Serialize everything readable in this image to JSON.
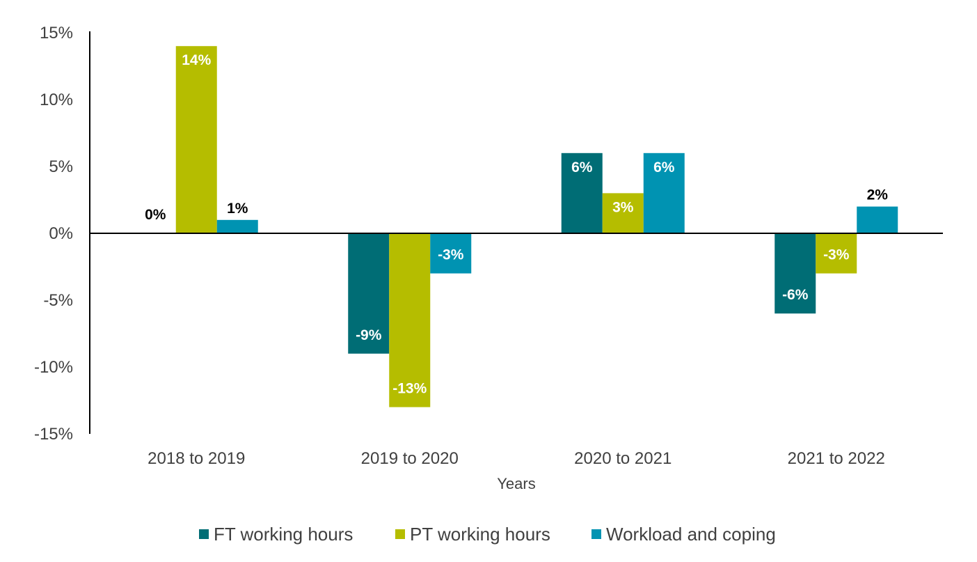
{
  "chart_data": {
    "type": "bar",
    "title": "",
    "xlabel": "Years",
    "ylabel": "",
    "ylim": [
      -15,
      15
    ],
    "yticks": [
      15,
      10,
      5,
      0,
      -5,
      -10,
      -15
    ],
    "ytick_labels": [
      "15%",
      "10%",
      "5%",
      "0%",
      "-5%",
      "-10%",
      "-15%"
    ],
    "categories": [
      "2018 to 2019",
      "2019 to 2020",
      "2020 to 2021",
      "2021 to 2022"
    ],
    "series": [
      {
        "name": "FT working hours",
        "color": "#006D75",
        "values": [
          0,
          -9,
          6,
          -6
        ],
        "labels": [
          "0%",
          "-9%",
          "6%",
          "-6%"
        ]
      },
      {
        "name": "PT working hours",
        "color": "#B5BD00",
        "values": [
          14,
          -13,
          3,
          -3
        ],
        "labels": [
          "14%",
          "-13%",
          "3%",
          "-3%"
        ]
      },
      {
        "name": "Workload and coping",
        "color": "#0093B2",
        "values": [
          1,
          -3,
          6,
          2
        ],
        "labels": [
          "1%",
          "-3%",
          "6%",
          "2%"
        ]
      }
    ],
    "grid": false,
    "legend_position": "bottom"
  }
}
